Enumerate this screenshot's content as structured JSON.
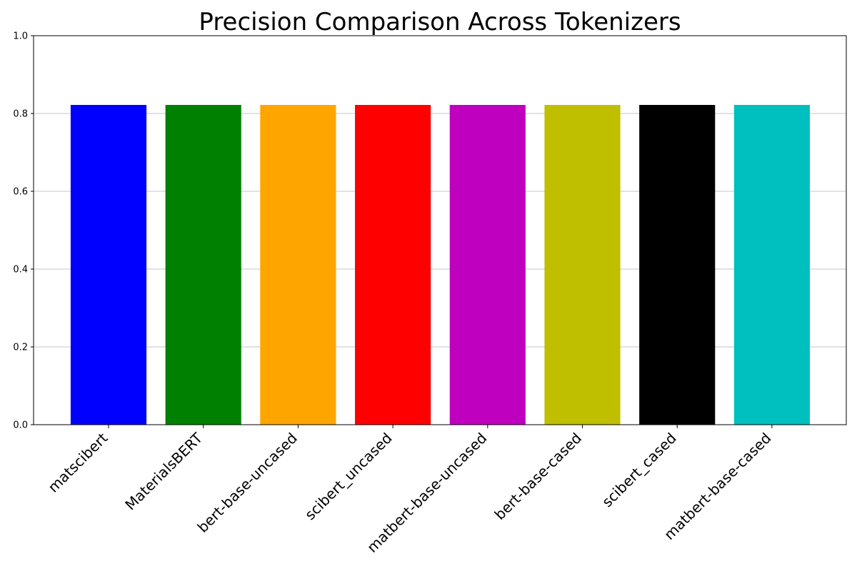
{
  "chart_data": {
    "type": "bar",
    "title": "Precision Comparison Across Tokenizers",
    "xlabel": "",
    "ylabel": "",
    "categories": [
      "matscibert",
      "MaterialsBERT",
      "bert-base-uncased",
      "scibert_uncased",
      "matbert-base-uncased",
      "bert-base-cased",
      "scibert_cased",
      "matbert-base-cased"
    ],
    "values": [
      0.822,
      0.822,
      0.822,
      0.822,
      0.822,
      0.822,
      0.822,
      0.822
    ],
    "colors": [
      "#0000ff",
      "#008000",
      "#ffa500",
      "#ff0000",
      "#bf00bf",
      "#bfbf00",
      "#000000",
      "#00bfbf"
    ],
    "ylim": [
      0,
      1.0
    ],
    "yticks": [
      "0.0",
      "0.2",
      "0.4",
      "0.6",
      "0.8",
      "1.0"
    ],
    "grid": "y",
    "legend": "none"
  }
}
